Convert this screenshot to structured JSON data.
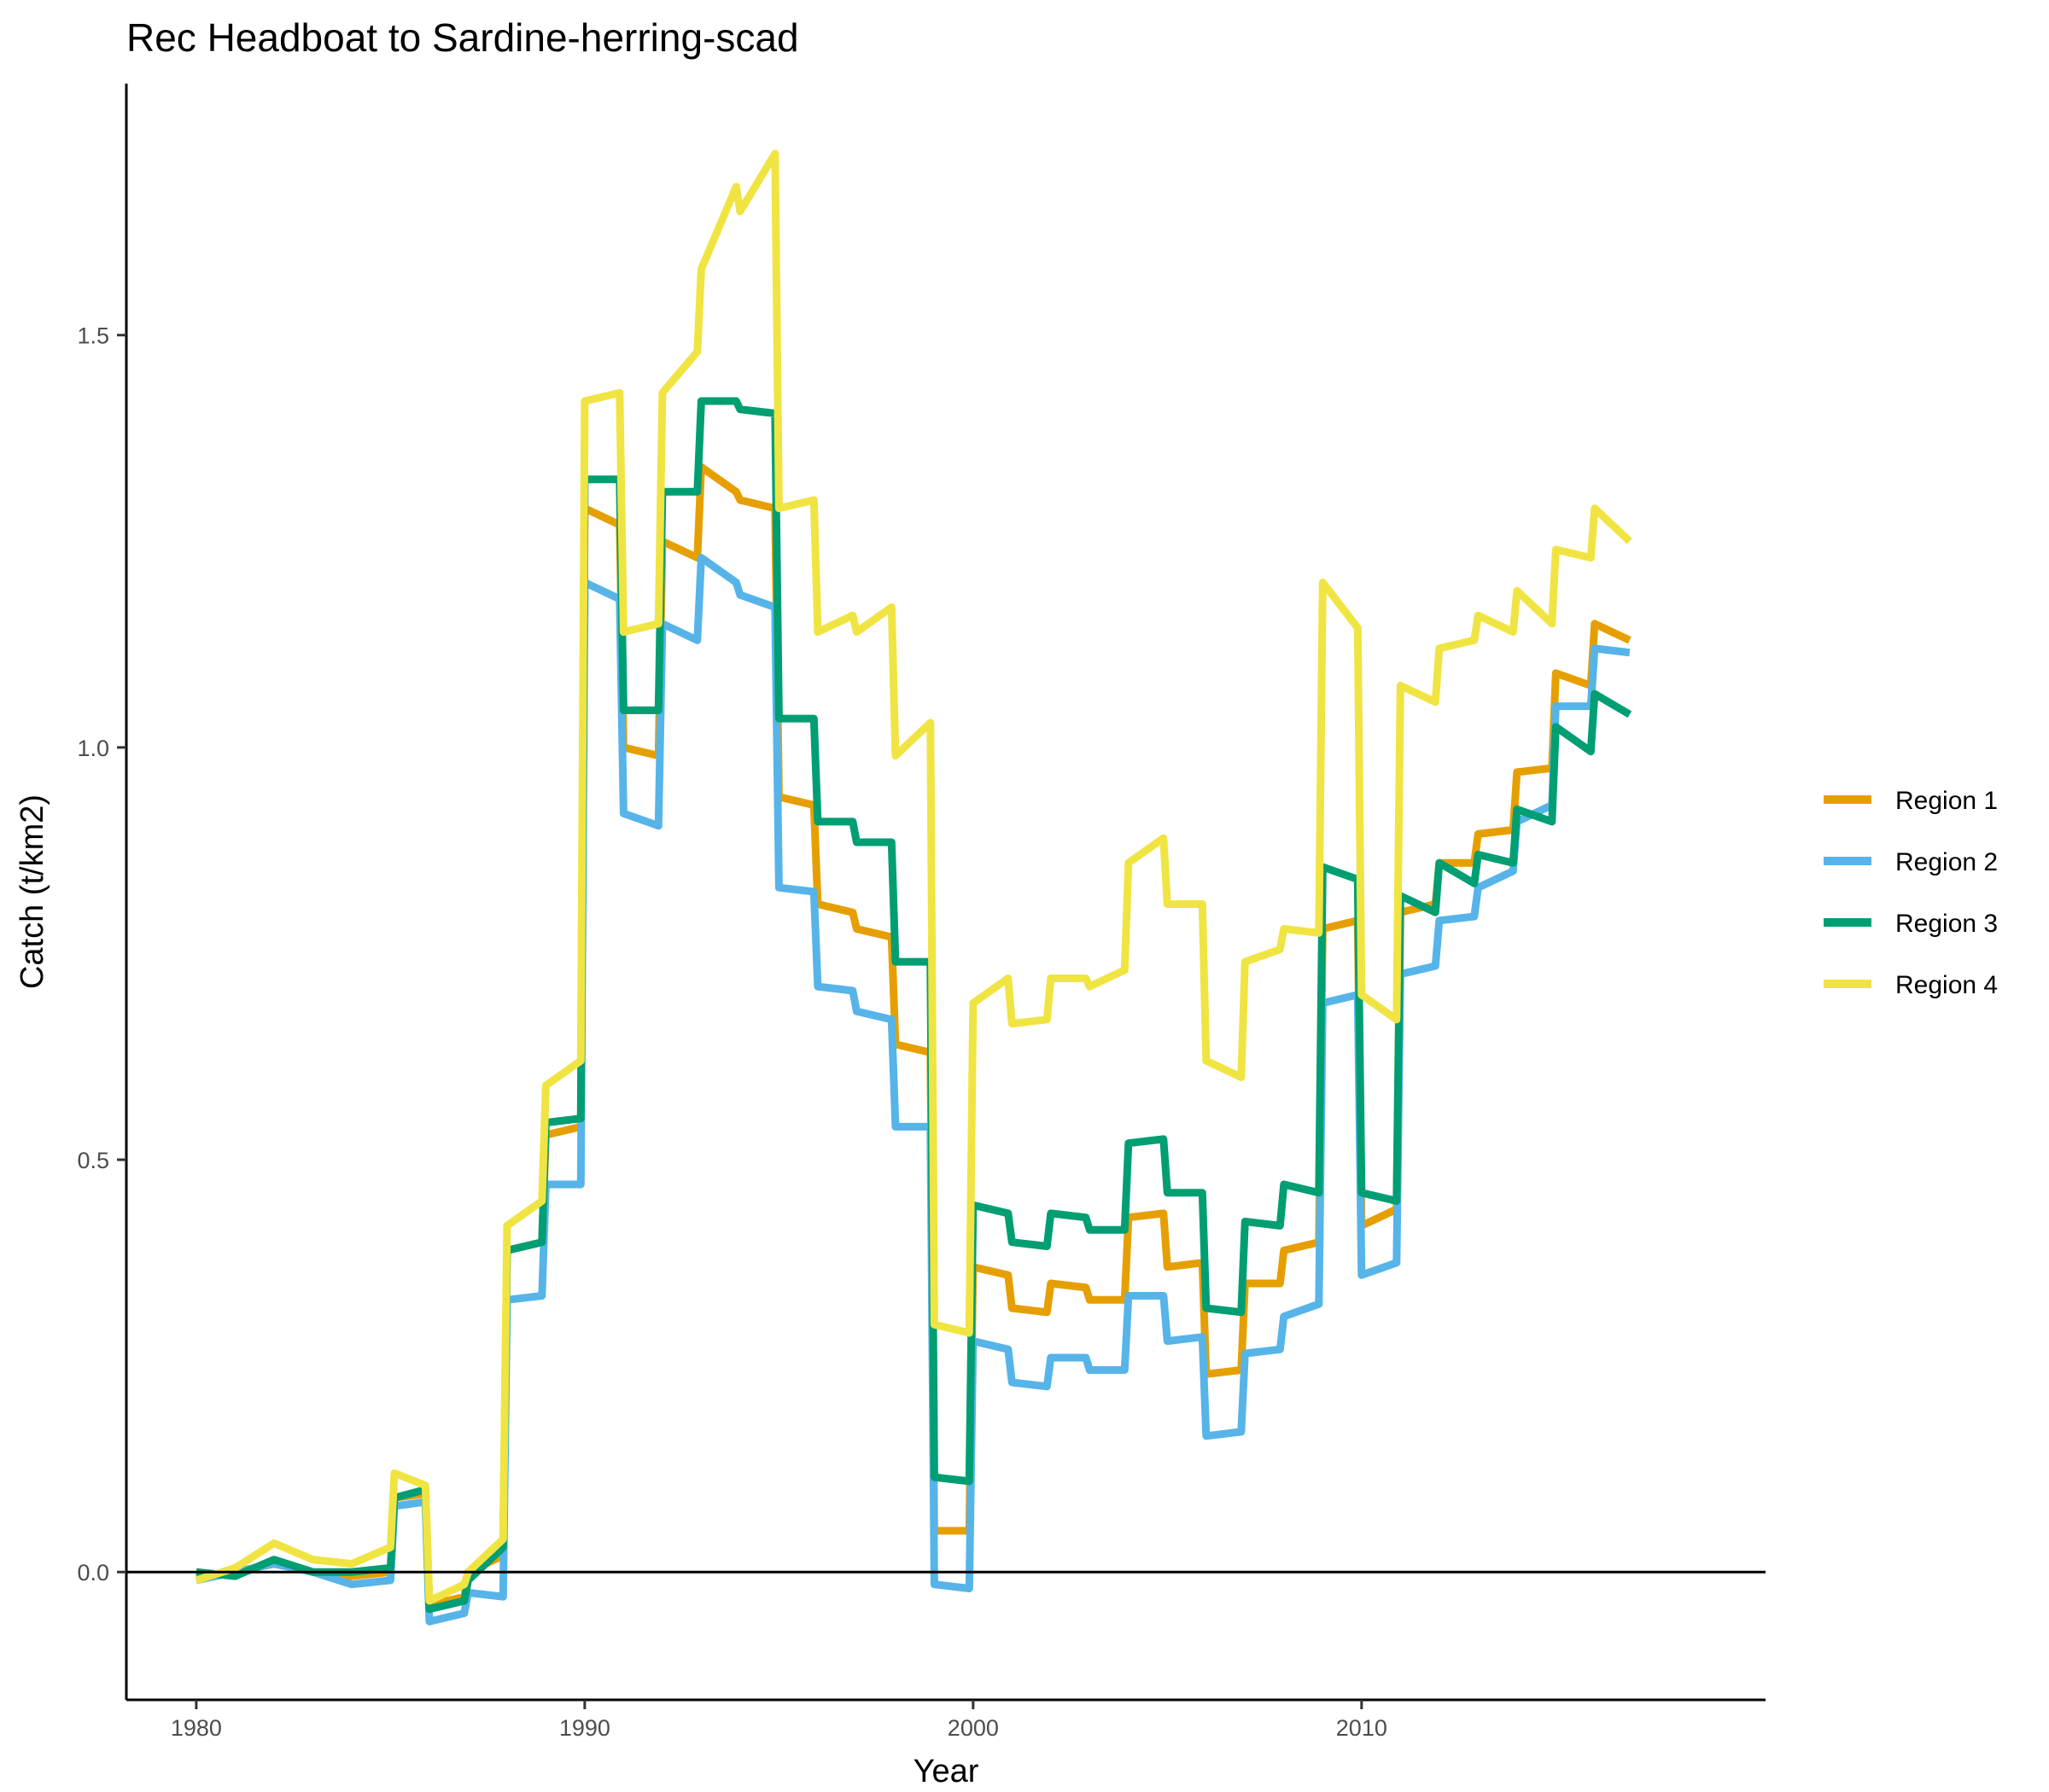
{
  "chart_data": {
    "type": "line",
    "title": "Rec Headboat to Sardine-herring-scad",
    "xlabel": "Year",
    "ylabel": "Catch (t/km2)",
    "xlim": [
      1978.2,
      2020.4
    ],
    "ylim": [
      -0.155,
      1.805
    ],
    "xticks": [
      1980,
      1990,
      2000,
      2010
    ],
    "yticks": [
      0.0,
      0.5,
      1.0,
      1.5
    ],
    "xtick_labels": [
      "1980",
      "1990",
      "2000",
      "2010"
    ],
    "ytick_labels": [
      "0.0",
      "0.5",
      "1.0",
      "1.5"
    ],
    "hline": 0,
    "grid": false,
    "legend_position": "right",
    "series": [
      {
        "name": "Region 1",
        "color": "#E69F00",
        "points": [
          [
            1980,
            -0.01
          ],
          [
            1981,
            0.0
          ],
          [
            1982,
            0.01
          ],
          [
            1983,
            0.0
          ],
          [
            1984,
            -0.005
          ],
          [
            1985,
            0.0
          ],
          [
            1985.1,
            0.09
          ],
          [
            1985.9,
            0.095
          ],
          [
            1986,
            -0.04
          ],
          [
            1986.9,
            -0.03
          ],
          [
            1987,
            0.0
          ],
          [
            1987.9,
            0.02
          ],
          [
            1988,
            0.39
          ],
          [
            1988.9,
            0.4
          ],
          [
            1989,
            0.53
          ],
          [
            1989.9,
            0.54
          ],
          [
            1990,
            1.29
          ],
          [
            1990.9,
            1.27
          ],
          [
            1991,
            1.0
          ],
          [
            1991.9,
            0.99
          ],
          [
            1992,
            1.25
          ],
          [
            1992.9,
            1.23
          ],
          [
            1993,
            1.34
          ],
          [
            1993.9,
            1.31
          ],
          [
            1994,
            1.3
          ],
          [
            1994.9,
            1.29
          ],
          [
            1995,
            0.94
          ],
          [
            1995.9,
            0.93
          ],
          [
            1996,
            0.81
          ],
          [
            1996.9,
            0.8
          ],
          [
            1997,
            0.78
          ],
          [
            1997.9,
            0.77
          ],
          [
            1998,
            0.64
          ],
          [
            1998.9,
            0.63
          ],
          [
            1999,
            0.05
          ],
          [
            1999.9,
            0.05
          ],
          [
            2000,
            0.37
          ],
          [
            2000.9,
            0.36
          ],
          [
            2001,
            0.32
          ],
          [
            2001.9,
            0.315
          ],
          [
            2002,
            0.35
          ],
          [
            2002.9,
            0.345
          ],
          [
            2003,
            0.33
          ],
          [
            2003.9,
            0.33
          ],
          [
            2004,
            0.43
          ],
          [
            2004.9,
            0.435
          ],
          [
            2005,
            0.37
          ],
          [
            2005.9,
            0.375
          ],
          [
            2006,
            0.24
          ],
          [
            2006.9,
            0.245
          ],
          [
            2007,
            0.35
          ],
          [
            2007.9,
            0.35
          ],
          [
            2008,
            0.39
          ],
          [
            2008.9,
            0.4
          ],
          [
            2009,
            0.78
          ],
          [
            2009.9,
            0.79
          ],
          [
            2010,
            0.42
          ],
          [
            2010.9,
            0.44
          ],
          [
            2011,
            0.8
          ],
          [
            2011.9,
            0.81
          ],
          [
            2012,
            0.86
          ],
          [
            2012.9,
            0.86
          ],
          [
            2013,
            0.895
          ],
          [
            2013.9,
            0.9
          ],
          [
            2014,
            0.97
          ],
          [
            2014.9,
            0.975
          ],
          [
            2015,
            1.09
          ],
          [
            2015.9,
            1.075
          ],
          [
            2016,
            1.15
          ],
          [
            2016.9,
            1.13
          ]
        ]
      },
      {
        "name": "Region 2",
        "color": "#56B4E9",
        "points": [
          [
            1980,
            -0.01
          ],
          [
            1981,
            0.0
          ],
          [
            1982,
            0.01
          ],
          [
            1983,
            0.0
          ],
          [
            1984,
            -0.015
          ],
          [
            1985,
            -0.01
          ],
          [
            1985.1,
            0.08
          ],
          [
            1985.9,
            0.085
          ],
          [
            1986,
            -0.06
          ],
          [
            1986.9,
            -0.05
          ],
          [
            1987,
            -0.025
          ],
          [
            1987.9,
            -0.03
          ],
          [
            1988,
            0.33
          ],
          [
            1988.9,
            0.335
          ],
          [
            1989,
            0.47
          ],
          [
            1989.9,
            0.47
          ],
          [
            1990,
            1.2
          ],
          [
            1990.9,
            1.18
          ],
          [
            1991,
            0.92
          ],
          [
            1991.9,
            0.905
          ],
          [
            1992,
            1.15
          ],
          [
            1992.9,
            1.13
          ],
          [
            1993,
            1.23
          ],
          [
            1993.9,
            1.2
          ],
          [
            1994,
            1.185
          ],
          [
            1994.9,
            1.17
          ],
          [
            1995,
            0.83
          ],
          [
            1995.9,
            0.825
          ],
          [
            1996,
            0.71
          ],
          [
            1996.9,
            0.705
          ],
          [
            1997,
            0.68
          ],
          [
            1997.9,
            0.67
          ],
          [
            1998,
            0.54
          ],
          [
            1998.9,
            0.54
          ],
          [
            1999,
            -0.015
          ],
          [
            1999.9,
            -0.02
          ],
          [
            2000,
            0.28
          ],
          [
            2000.9,
            0.27
          ],
          [
            2001,
            0.23
          ],
          [
            2001.9,
            0.225
          ],
          [
            2002,
            0.26
          ],
          [
            2002.9,
            0.26
          ],
          [
            2003,
            0.245
          ],
          [
            2003.9,
            0.245
          ],
          [
            2004,
            0.335
          ],
          [
            2004.9,
            0.335
          ],
          [
            2005,
            0.28
          ],
          [
            2005.9,
            0.285
          ],
          [
            2006,
            0.165
          ],
          [
            2006.9,
            0.17
          ],
          [
            2007,
            0.265
          ],
          [
            2007.9,
            0.27
          ],
          [
            2008,
            0.31
          ],
          [
            2008.9,
            0.325
          ],
          [
            2009,
            0.69
          ],
          [
            2009.9,
            0.7
          ],
          [
            2010,
            0.36
          ],
          [
            2010.9,
            0.375
          ],
          [
            2011,
            0.725
          ],
          [
            2011.9,
            0.735
          ],
          [
            2012,
            0.79
          ],
          [
            2012.9,
            0.795
          ],
          [
            2013,
            0.83
          ],
          [
            2013.9,
            0.85
          ],
          [
            2014,
            0.91
          ],
          [
            2014.9,
            0.93
          ],
          [
            2015,
            1.05
          ],
          [
            2015.9,
            1.05
          ],
          [
            2016,
            1.12
          ],
          [
            2016.9,
            1.115
          ]
        ]
      },
      {
        "name": "Region 3",
        "color": "#009E73",
        "points": [
          [
            1980,
            0.0
          ],
          [
            1981,
            -0.005
          ],
          [
            1982,
            0.015
          ],
          [
            1983,
            0.0
          ],
          [
            1984,
            0.0
          ],
          [
            1985,
            0.005
          ],
          [
            1985.1,
            0.09
          ],
          [
            1985.9,
            0.1
          ],
          [
            1986,
            -0.045
          ],
          [
            1986.9,
            -0.035
          ],
          [
            1987,
            -0.01
          ],
          [
            1987.9,
            0.03
          ],
          [
            1988,
            0.39
          ],
          [
            1988.9,
            0.4
          ],
          [
            1989,
            0.545
          ],
          [
            1989.9,
            0.55
          ],
          [
            1990,
            1.325
          ],
          [
            1990.9,
            1.325
          ],
          [
            1991,
            1.045
          ],
          [
            1991.9,
            1.045
          ],
          [
            1992,
            1.31
          ],
          [
            1992.9,
            1.31
          ],
          [
            1993,
            1.42
          ],
          [
            1993.9,
            1.42
          ],
          [
            1994,
            1.41
          ],
          [
            1994.9,
            1.405
          ],
          [
            1995,
            1.035
          ],
          [
            1995.9,
            1.035
          ],
          [
            1996,
            0.91
          ],
          [
            1996.9,
            0.91
          ],
          [
            1997,
            0.885
          ],
          [
            1997.9,
            0.885
          ],
          [
            1998,
            0.74
          ],
          [
            1998.9,
            0.74
          ],
          [
            1999,
            0.115
          ],
          [
            1999.9,
            0.11
          ],
          [
            2000,
            0.445
          ],
          [
            2000.9,
            0.435
          ],
          [
            2001,
            0.4
          ],
          [
            2001.9,
            0.395
          ],
          [
            2002,
            0.435
          ],
          [
            2002.9,
            0.43
          ],
          [
            2003,
            0.415
          ],
          [
            2003.9,
            0.415
          ],
          [
            2004,
            0.52
          ],
          [
            2004.9,
            0.525
          ],
          [
            2005,
            0.46
          ],
          [
            2005.9,
            0.46
          ],
          [
            2006,
            0.32
          ],
          [
            2006.9,
            0.315
          ],
          [
            2007,
            0.425
          ],
          [
            2007.9,
            0.42
          ],
          [
            2008,
            0.47
          ],
          [
            2008.9,
            0.46
          ],
          [
            2009,
            0.855
          ],
          [
            2009.9,
            0.84
          ],
          [
            2010,
            0.46
          ],
          [
            2010.9,
            0.45
          ],
          [
            2011,
            0.82
          ],
          [
            2011.9,
            0.8
          ],
          [
            2012,
            0.86
          ],
          [
            2012.9,
            0.835
          ],
          [
            2013,
            0.87
          ],
          [
            2013.9,
            0.86
          ],
          [
            2014,
            0.925
          ],
          [
            2014.9,
            0.91
          ],
          [
            2015,
            1.025
          ],
          [
            2015.9,
            0.995
          ],
          [
            2016,
            1.065
          ],
          [
            2016.9,
            1.04
          ]
        ]
      },
      {
        "name": "Region 4",
        "color": "#F0E442",
        "points": [
          [
            1980,
            -0.01
          ],
          [
            1981,
            0.005
          ],
          [
            1982,
            0.035
          ],
          [
            1983,
            0.015
          ],
          [
            1984,
            0.01
          ],
          [
            1985,
            0.03
          ],
          [
            1985.1,
            0.12
          ],
          [
            1985.9,
            0.105
          ],
          [
            1986,
            -0.035
          ],
          [
            1986.9,
            -0.015
          ],
          [
            1987,
            0.0
          ],
          [
            1987.9,
            0.04
          ],
          [
            1988,
            0.42
          ],
          [
            1988.9,
            0.45
          ],
          [
            1989,
            0.59
          ],
          [
            1989.9,
            0.62
          ],
          [
            1990,
            1.42
          ],
          [
            1990.9,
            1.43
          ],
          [
            1991,
            1.14
          ],
          [
            1991.9,
            1.15
          ],
          [
            1992,
            1.43
          ],
          [
            1992.9,
            1.48
          ],
          [
            1993,
            1.58
          ],
          [
            1993.9,
            1.68
          ],
          [
            1994,
            1.65
          ],
          [
            1994.9,
            1.72
          ],
          [
            1995,
            1.29
          ],
          [
            1995.9,
            1.3
          ],
          [
            1996,
            1.14
          ],
          [
            1996.9,
            1.16
          ],
          [
            1997,
            1.14
          ],
          [
            1997.9,
            1.17
          ],
          [
            1998,
            0.99
          ],
          [
            1998.9,
            1.03
          ],
          [
            1999,
            0.3
          ],
          [
            1999.9,
            0.29
          ],
          [
            2000,
            0.69
          ],
          [
            2000.9,
            0.72
          ],
          [
            2001,
            0.665
          ],
          [
            2001.9,
            0.67
          ],
          [
            2002,
            0.72
          ],
          [
            2002.9,
            0.72
          ],
          [
            2003,
            0.71
          ],
          [
            2003.9,
            0.73
          ],
          [
            2004,
            0.86
          ],
          [
            2004.9,
            0.89
          ],
          [
            2005,
            0.81
          ],
          [
            2005.9,
            0.81
          ],
          [
            2006,
            0.62
          ],
          [
            2006.9,
            0.6
          ],
          [
            2007,
            0.74
          ],
          [
            2007.9,
            0.755
          ],
          [
            2008,
            0.78
          ],
          [
            2008.9,
            0.775
          ],
          [
            2009,
            1.2
          ],
          [
            2009.9,
            1.145
          ],
          [
            2010,
            0.7
          ],
          [
            2010.9,
            0.67
          ],
          [
            2011,
            1.075
          ],
          [
            2011.9,
            1.055
          ],
          [
            2012,
            1.12
          ],
          [
            2012.9,
            1.13
          ],
          [
            2013,
            1.16
          ],
          [
            2013.9,
            1.14
          ],
          [
            2014,
            1.19
          ],
          [
            2014.9,
            1.15
          ],
          [
            2015,
            1.24
          ],
          [
            2015.9,
            1.23
          ],
          [
            2016,
            1.29
          ],
          [
            2016.9,
            1.25
          ]
        ]
      }
    ]
  }
}
